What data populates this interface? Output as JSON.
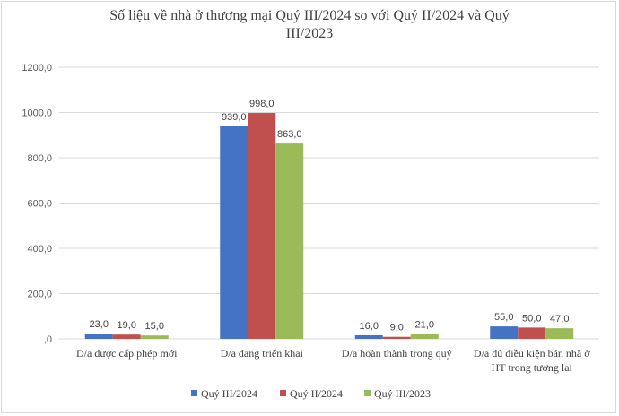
{
  "chart_data": {
    "type": "bar",
    "title_lines": [
      "Số liệu về nhà ở thương mại Quý III/2024 so với Quý II/2024 và Quý",
      "III/2023"
    ],
    "categories": [
      [
        "D/a được cấp phép mới"
      ],
      [
        "D/a đang triển khai"
      ],
      [
        "D/a hoàn thành trong quý"
      ],
      [
        "D/a đủ điều kiện bán nhà ở",
        "HT trong tương lai"
      ]
    ],
    "series": [
      {
        "name": "Quý III/2024",
        "color": "#4472c4",
        "values": [
          23.0,
          939.0,
          16.0,
          55.0
        ],
        "labels": [
          "23,0",
          "939,0",
          "16,0",
          "55,0"
        ]
      },
      {
        "name": "Quý II/2024",
        "color": "#c0504d",
        "values": [
          19.0,
          998.0,
          9.0,
          50.0
        ],
        "labels": [
          "19,0",
          "998,0",
          "9,0",
          "50,0"
        ]
      },
      {
        "name": "Quý III/2023",
        "color": "#9bbb59",
        "values": [
          15.0,
          863.0,
          21.0,
          47.0
        ],
        "labels": [
          "15,0",
          "863,0",
          "21,0",
          "47,0"
        ]
      }
    ],
    "ylim": [
      0,
      1200
    ],
    "yticks": [
      0,
      200,
      400,
      600,
      800,
      1000,
      1200
    ],
    "ytick_labels": [
      ",0",
      "200,0",
      "400,0",
      "600,0",
      "800,0",
      "1000,0",
      "1200,0"
    ],
    "grid": true,
    "legend_position": "bottom"
  }
}
